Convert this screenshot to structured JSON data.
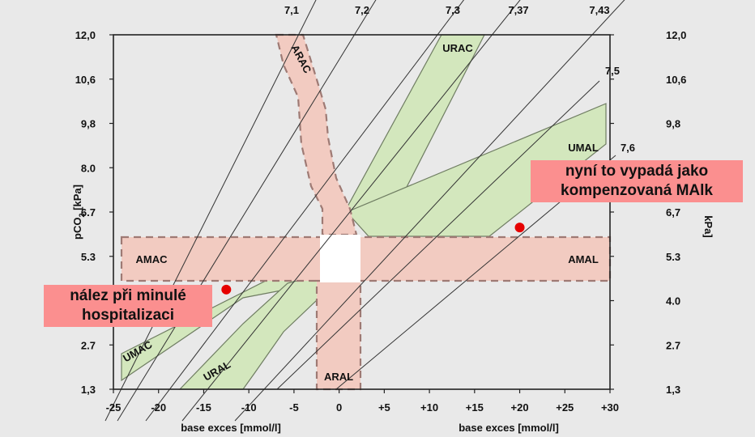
{
  "chart_data": {
    "type": "scatter",
    "x_axis": {
      "label": "base exces [mmol/l]",
      "range": [
        -25,
        30
      ],
      "ticks": [
        "-25",
        "-20",
        "-15",
        "-10",
        "-5",
        "0",
        "+5",
        "+10",
        "+15",
        "+20",
        "+25",
        "+30"
      ],
      "tick_values": [
        -25,
        -20,
        -15,
        -10,
        -5,
        0,
        5,
        10,
        15,
        20,
        25,
        30
      ]
    },
    "y_axis": {
      "label_left": "pCO",
      "label_left_sub": "2",
      "label_left_unit": " [kPa]",
      "label_right": "kPa]",
      "ticks": [
        "1,3",
        "2.7",
        "4.0",
        "5.3",
        "6.7",
        "8.0",
        "9,8",
        "10,6",
        "12,0"
      ],
      "ticks_right": [
        "1,3",
        "2.7",
        "4.0",
        "5.3",
        "6,7",
        "8,0",
        "9,8",
        "10,6",
        "12,0"
      ]
    },
    "ph_isolines": [
      "7,1",
      "7,2",
      "7,3",
      "7,37",
      "7,43",
      "7,5",
      "7,6"
    ],
    "zones": {
      "ARAC": "ARAC",
      "URAC": "URAC",
      "UMAL": "UMAL",
      "AMAC": "AMAC",
      "AMAL": "AMAL",
      "UMAC": "UMAC",
      "URAL": "URAL",
      "ARAL": "ARAL"
    },
    "points": [
      {
        "name": "previous",
        "be": -12.5,
        "pco2_tick_index": 2.25
      },
      {
        "name": "current",
        "be": 20,
        "pco2_tick_index": 3.65
      }
    ],
    "colors": {
      "acute_zone": "#f2cbc1",
      "acute_border": "#9e7a74",
      "compensated_zone": "#d3e7bd",
      "compensated_border": "#6f7d62",
      "normal": "#ffffff",
      "point": "#e60000",
      "note_bg": "#fb8f8f"
    }
  },
  "annotations": {
    "current": "nyní to vypadá jako kompenzovaná MAlk",
    "previous": "nález při minulé hospitalizaci"
  }
}
